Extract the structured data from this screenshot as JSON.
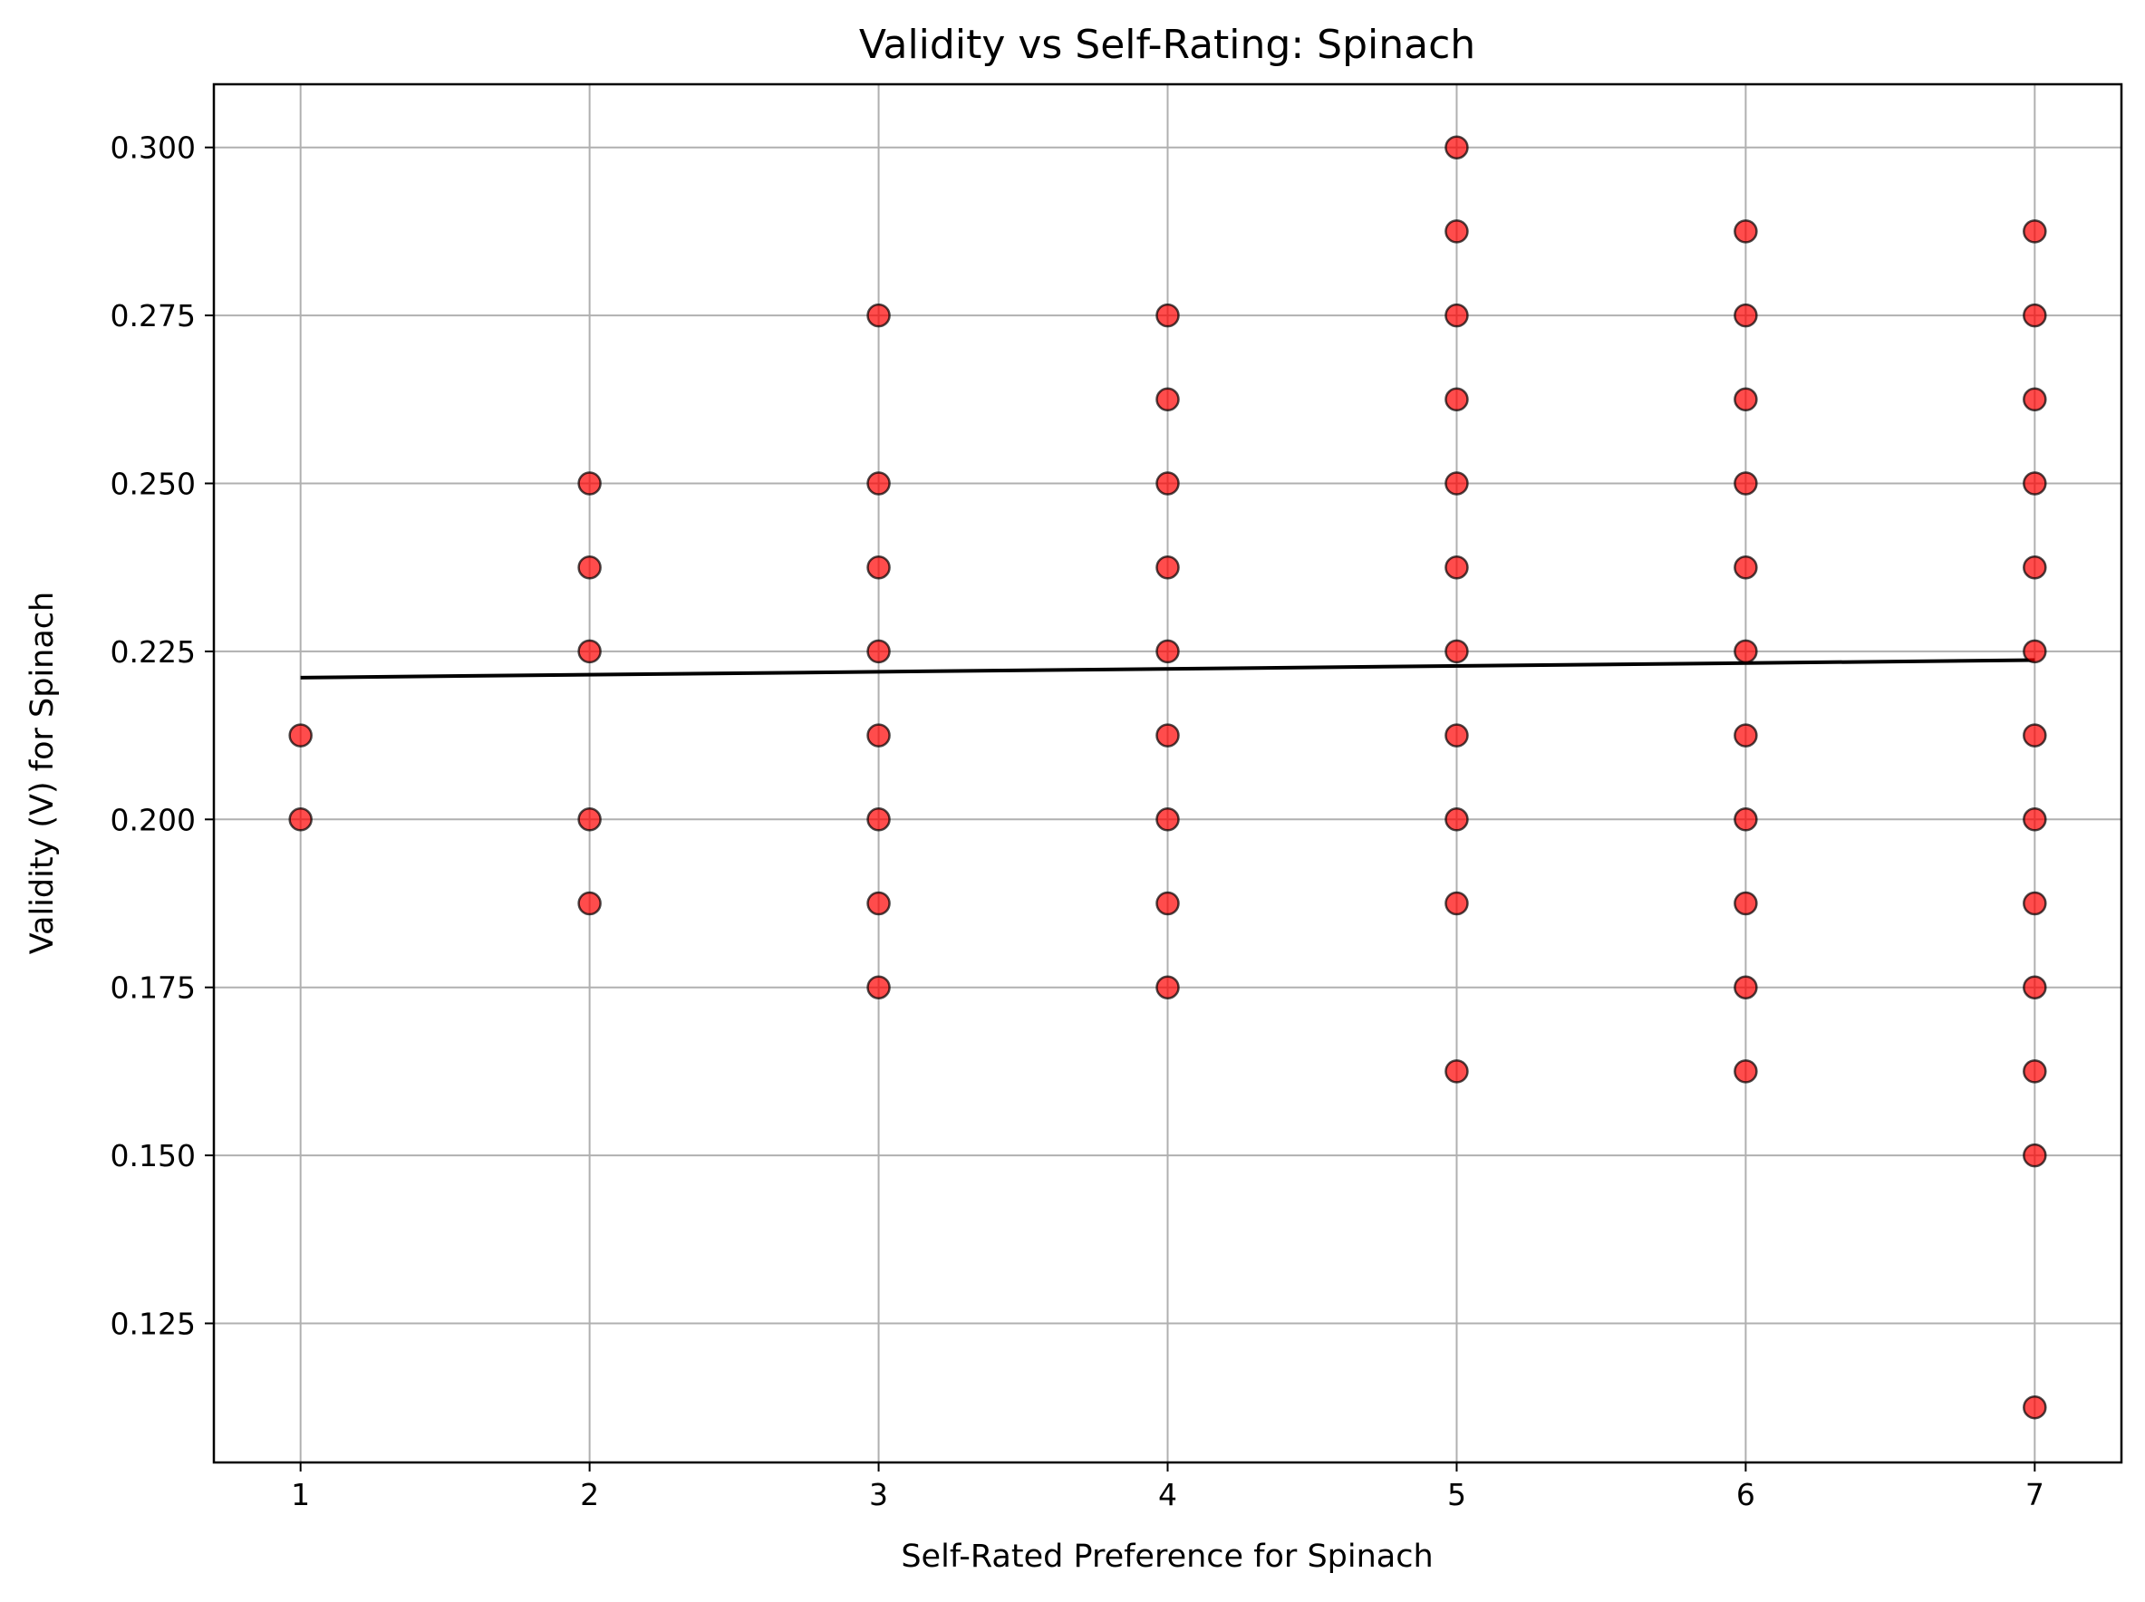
{
  "chart_data": {
    "type": "scatter",
    "title": "Validity vs Self-Rating: Spinach",
    "xlabel": "Self-Rated Preference for Spinach",
    "ylabel": "Validity (V) for Spinach",
    "xlim": [
      0.7,
      7.3
    ],
    "ylim": [
      0.1043,
      0.3094
    ],
    "xticks": [
      1,
      2,
      3,
      4,
      5,
      6,
      7
    ],
    "xtick_labels": [
      "1",
      "2",
      "3",
      "4",
      "5",
      "6",
      "7"
    ],
    "yticks": [
      0.125,
      0.15,
      0.175,
      0.2,
      0.225,
      0.25,
      0.275,
      0.3
    ],
    "ytick_labels": [
      "0.125",
      "0.150",
      "0.175",
      "0.200",
      "0.225",
      "0.250",
      "0.275",
      "0.300"
    ],
    "grid": true,
    "colors": {
      "marker_fill": "#ff0000",
      "marker_edge": "#000000",
      "trend_line": "#000000",
      "grid": "#b0b0b0"
    },
    "series": [
      {
        "type": "scatter",
        "points": [
          [
            1,
            0.2125
          ],
          [
            1,
            0.2
          ],
          [
            2,
            0.25
          ],
          [
            2,
            0.2375
          ],
          [
            2,
            0.225
          ],
          [
            2,
            0.2
          ],
          [
            2,
            0.1875
          ],
          [
            3,
            0.275
          ],
          [
            3,
            0.25
          ],
          [
            3,
            0.2375
          ],
          [
            3,
            0.225
          ],
          [
            3,
            0.2125
          ],
          [
            3,
            0.2
          ],
          [
            3,
            0.1875
          ],
          [
            3,
            0.175
          ],
          [
            4,
            0.275
          ],
          [
            4,
            0.2625
          ],
          [
            4,
            0.25
          ],
          [
            4,
            0.2375
          ],
          [
            4,
            0.225
          ],
          [
            4,
            0.2125
          ],
          [
            4,
            0.2
          ],
          [
            4,
            0.1875
          ],
          [
            4,
            0.175
          ],
          [
            5,
            0.3
          ],
          [
            5,
            0.2875
          ],
          [
            5,
            0.275
          ],
          [
            5,
            0.2625
          ],
          [
            5,
            0.25
          ],
          [
            5,
            0.2375
          ],
          [
            5,
            0.225
          ],
          [
            5,
            0.2125
          ],
          [
            5,
            0.2
          ],
          [
            5,
            0.1875
          ],
          [
            5,
            0.1625
          ],
          [
            6,
            0.2875
          ],
          [
            6,
            0.275
          ],
          [
            6,
            0.2625
          ],
          [
            6,
            0.25
          ],
          [
            6,
            0.2375
          ],
          [
            6,
            0.225
          ],
          [
            6,
            0.2125
          ],
          [
            6,
            0.2
          ],
          [
            6,
            0.1875
          ],
          [
            6,
            0.175
          ],
          [
            6,
            0.1625
          ],
          [
            7,
            0.2875
          ],
          [
            7,
            0.275
          ],
          [
            7,
            0.2625
          ],
          [
            7,
            0.25
          ],
          [
            7,
            0.2375
          ],
          [
            7,
            0.225
          ],
          [
            7,
            0.2125
          ],
          [
            7,
            0.2
          ],
          [
            7,
            0.1875
          ],
          [
            7,
            0.175
          ],
          [
            7,
            0.1625
          ],
          [
            7,
            0.15
          ],
          [
            7,
            0.1125
          ]
        ]
      },
      {
        "type": "line",
        "x": [
          1,
          7
        ],
        "y": [
          0.2211,
          0.2237
        ]
      }
    ]
  }
}
